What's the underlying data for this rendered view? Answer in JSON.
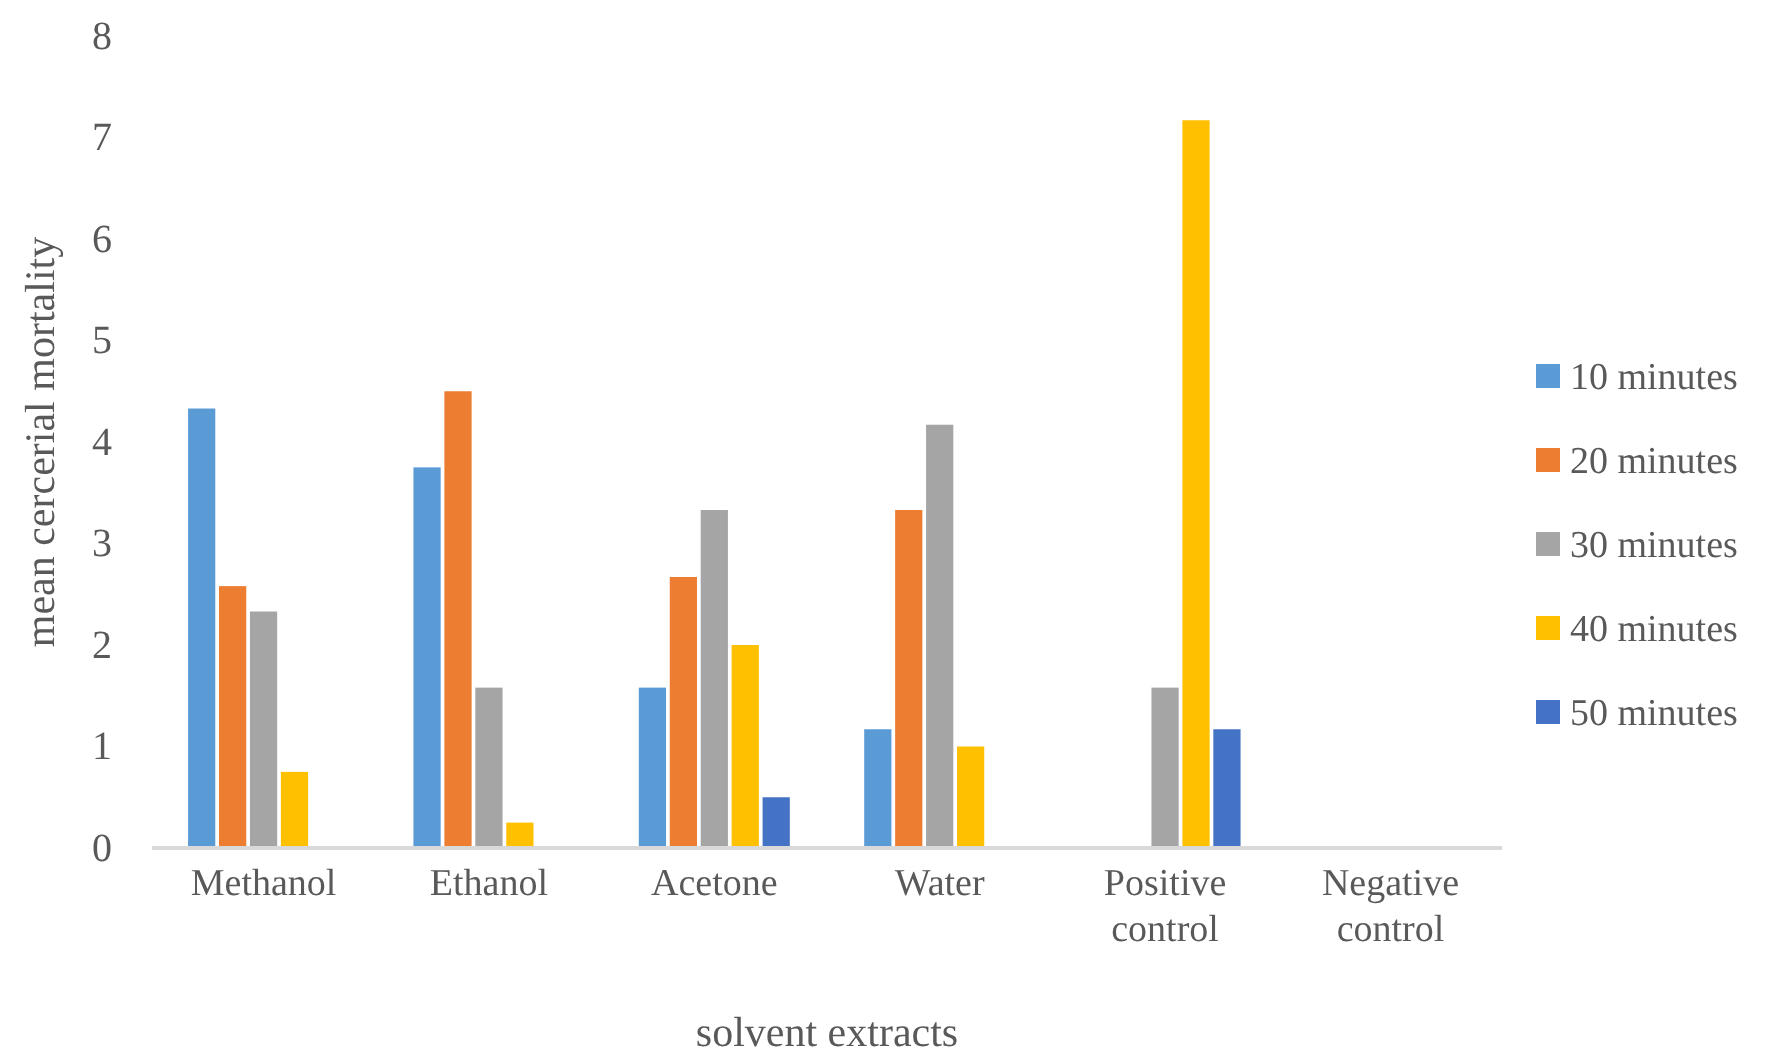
{
  "chart_data": {
    "type": "bar",
    "xlabel": "solvent extracts",
    "ylabel": "mean cercerial mortality",
    "categories": [
      "Methanol",
      "Ethanol",
      "Acetone",
      "Water",
      "Positive control",
      "Negative control"
    ],
    "series": [
      {
        "name": "10 minutes",
        "color": "#5b9bd5",
        "values": [
          4.33,
          3.75,
          1.58,
          1.17,
          0,
          0
        ]
      },
      {
        "name": "20 minutes",
        "color": "#ed7d31",
        "values": [
          2.58,
          4.5,
          2.67,
          3.33,
          0,
          0
        ]
      },
      {
        "name": "30 minutes",
        "color": "#a5a5a5",
        "values": [
          2.33,
          1.58,
          3.33,
          4.17,
          1.58,
          0
        ]
      },
      {
        "name": "40 minutes",
        "color": "#ffc000",
        "values": [
          0.75,
          0.25,
          2.0,
          1.0,
          7.17,
          0
        ]
      },
      {
        "name": "50 minutes",
        "color": "#4472c4",
        "values": [
          0,
          0,
          0.5,
          0,
          1.17,
          0
        ]
      }
    ],
    "ylim": [
      0,
      8
    ],
    "yticks": [
      0,
      1,
      2,
      3,
      4,
      5,
      6,
      7,
      8
    ],
    "grid": false,
    "legend": "right"
  }
}
